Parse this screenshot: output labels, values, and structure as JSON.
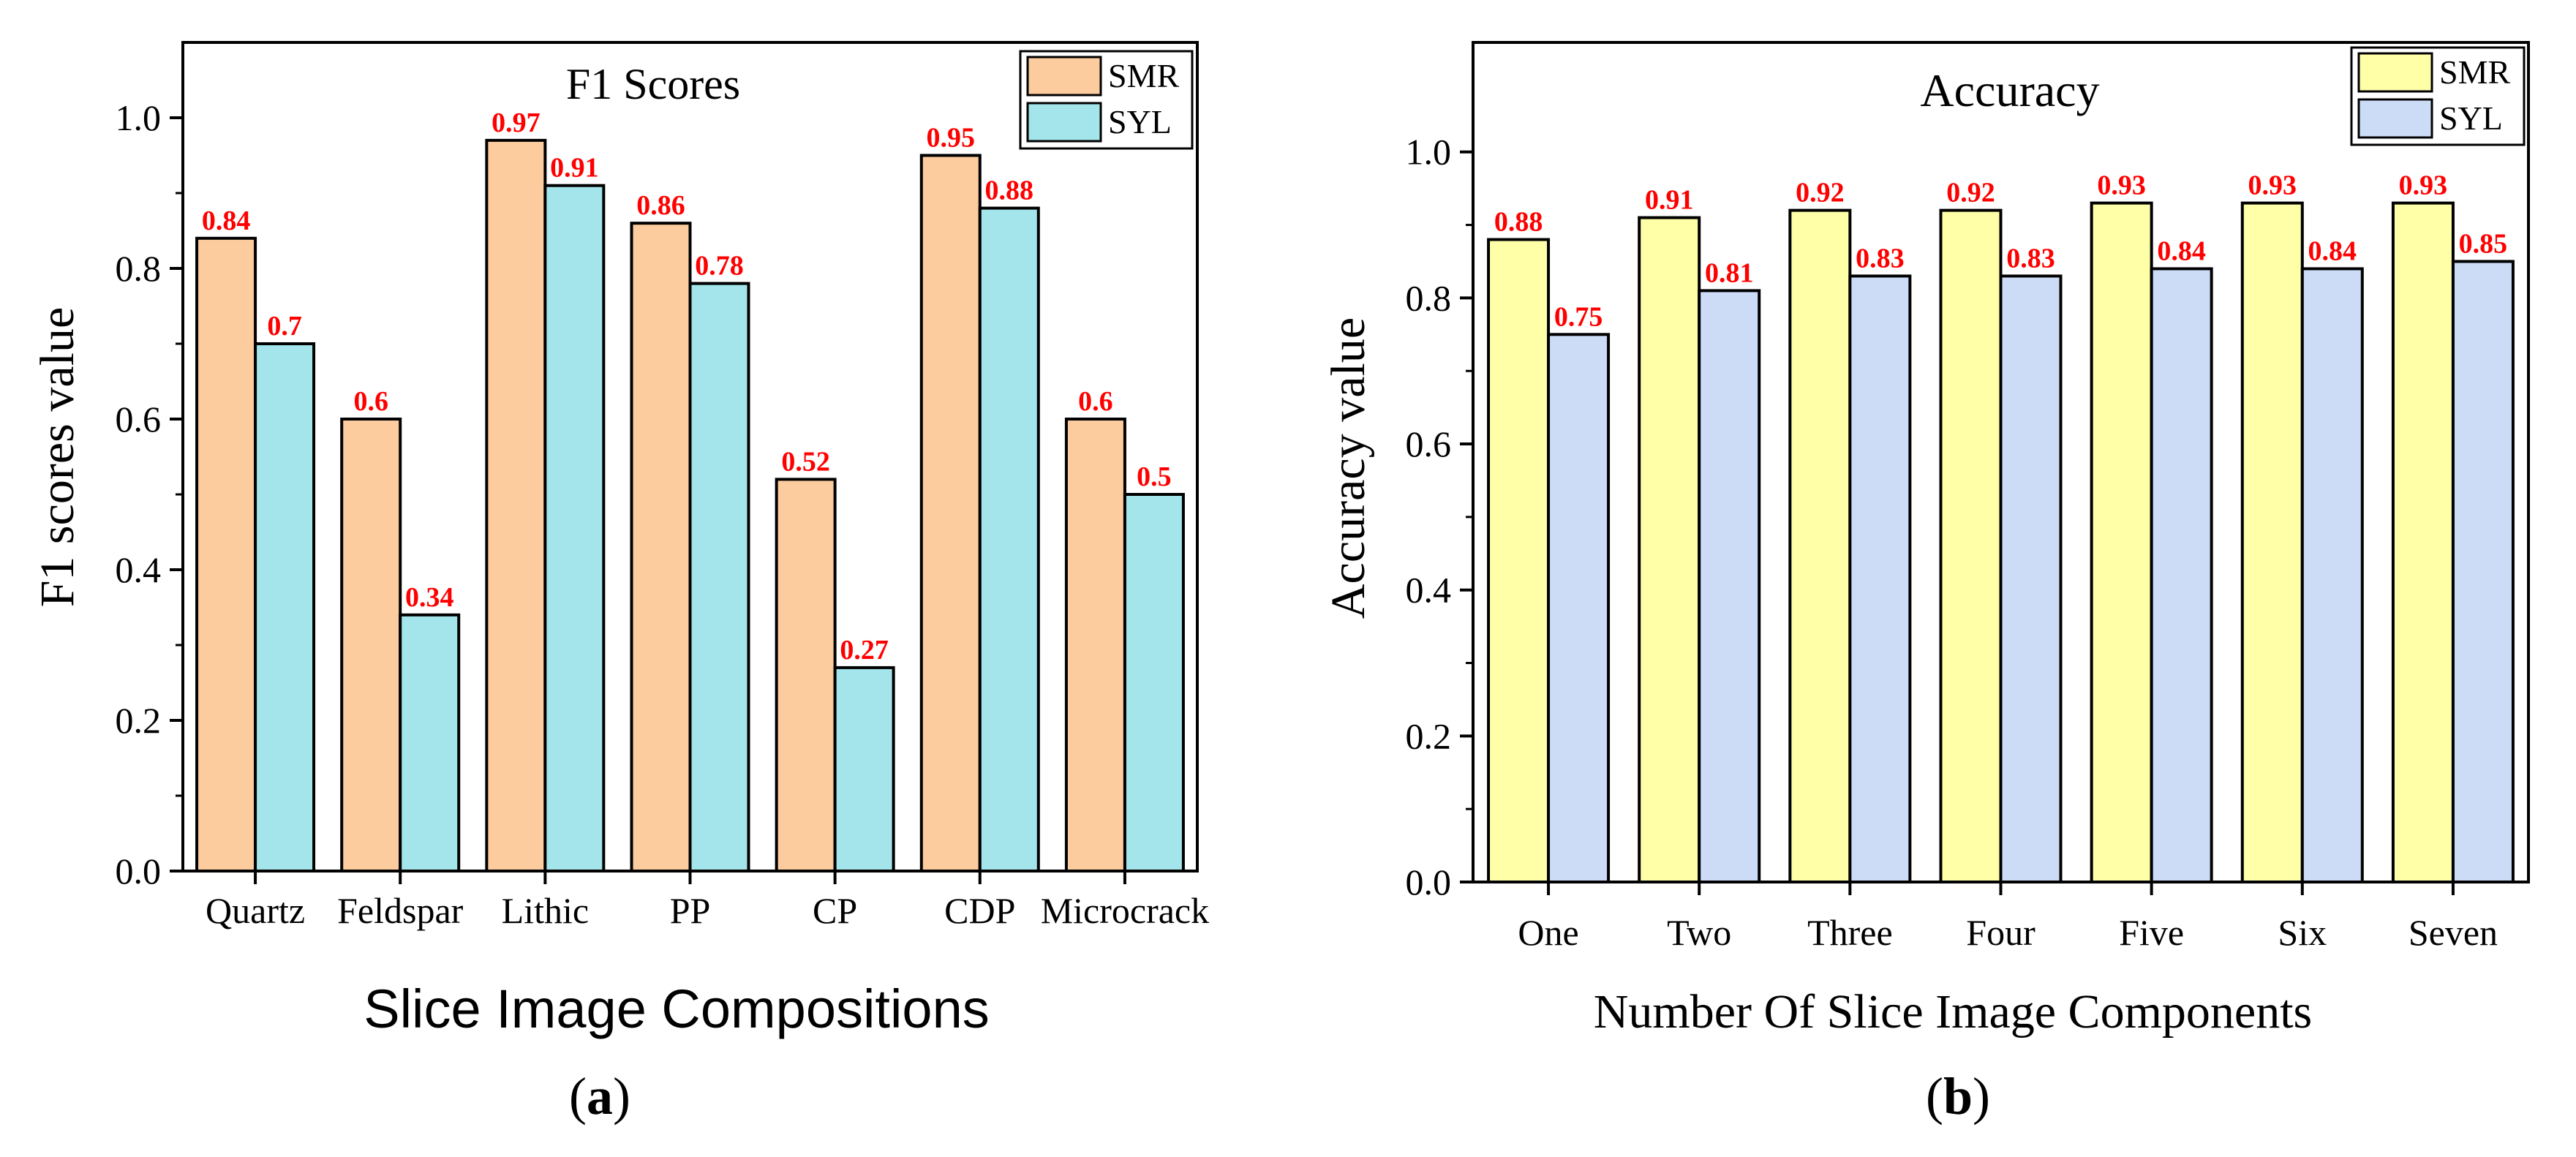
{
  "colors": {
    "smr_a": "#FDCC9E",
    "syl_a": "#A3E5EA",
    "smr_b": "#FFFFA8",
    "syl_b": "#CCDCF7",
    "value_label": "#FF0000",
    "axis": "#000000"
  },
  "chart_data": [
    {
      "type": "bar",
      "panel_label": "a",
      "title": "F1 Scores",
      "xlabel": "Slice Image Compositions",
      "ylabel": "F1 scores value",
      "ylim": [
        0,
        1.1
      ],
      "yticks": [
        0.0,
        0.2,
        0.4,
        0.6,
        0.8,
        1.0
      ],
      "ytick_labels": [
        "0.0",
        "0.2",
        "0.4",
        "0.6",
        "0.8",
        "1.0"
      ],
      "legend_position": "top-right",
      "categories": [
        "Quartz",
        "Feldspar",
        "Lithic",
        "PP",
        "CP",
        "CDP",
        "Microcrack"
      ],
      "series": [
        {
          "name": "SMR",
          "values": [
            0.84,
            0.6,
            0.97,
            0.86,
            0.52,
            0.95,
            0.6
          ],
          "labels": [
            "0.84",
            "0.6",
            "0.97",
            "0.86",
            "0.52",
            "0.95",
            "0.6"
          ]
        },
        {
          "name": "SYL",
          "values": [
            0.7,
            0.34,
            0.91,
            0.78,
            0.27,
            0.88,
            0.5
          ],
          "labels": [
            "0.7",
            "0.34",
            "0.91",
            "0.78",
            "0.27",
            "0.88",
            "0.5"
          ]
        }
      ]
    },
    {
      "type": "bar",
      "panel_label": "b",
      "title": "Accuracy",
      "xlabel": "Number Of Slice Image Components",
      "ylabel": "Accuracy value",
      "ylim": [
        0,
        1.15
      ],
      "yticks": [
        0.0,
        0.2,
        0.4,
        0.6,
        0.8,
        1.0
      ],
      "ytick_labels": [
        "0.0",
        "0.2",
        "0.4",
        "0.6",
        "0.8",
        "1.0"
      ],
      "legend_position": "top-right",
      "categories": [
        "One",
        "Two",
        "Three",
        "Four",
        "Five",
        "Six",
        "Seven"
      ],
      "series": [
        {
          "name": "SMR",
          "values": [
            0.88,
            0.91,
            0.92,
            0.92,
            0.93,
            0.93,
            0.93
          ],
          "labels": [
            "0.88",
            "0.91",
            "0.92",
            "0.92",
            "0.93",
            "0.93",
            "0.93"
          ]
        },
        {
          "name": "SYL",
          "values": [
            0.75,
            0.81,
            0.83,
            0.83,
            0.84,
            0.84,
            0.85
          ],
          "labels": [
            "0.75",
            "0.81",
            "0.83",
            "0.83",
            "0.84",
            "0.84",
            "0.85"
          ]
        }
      ]
    }
  ]
}
